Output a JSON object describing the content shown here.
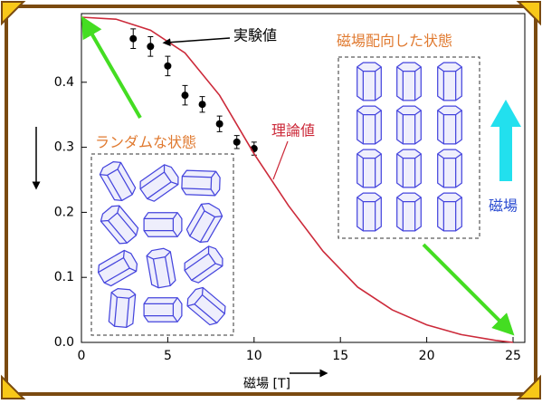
{
  "chart_data": {
    "type": "scatter",
    "xlabel": "磁場 [T]",
    "xlim": [
      0,
      25
    ],
    "ylim": [
      0,
      0.5
    ],
    "xticks": [
      0,
      5,
      10,
      15,
      20,
      25
    ],
    "yticks": [
      {
        "value": 0,
        "label": "0.0"
      },
      0.1,
      0.2,
      0.3,
      0.4
    ],
    "series": [
      {
        "name": "実験値",
        "color": "#000000",
        "style": "points",
        "x": [
          3,
          4,
          5,
          6,
          7,
          8,
          9,
          10
        ],
        "values": [
          0.467,
          0.455,
          0.425,
          0.38,
          0.366,
          0.336,
          0.308,
          0.298
        ],
        "errors": [
          0.015,
          0.015,
          0.015,
          0.015,
          0.012,
          0.012,
          0.01,
          0.01
        ]
      },
      {
        "name": "理論値",
        "color": "#cc2a3a",
        "style": "line",
        "x": [
          0,
          2,
          4,
          6,
          8,
          10,
          12,
          14,
          16,
          18,
          20,
          22,
          24,
          25
        ],
        "values": [
          0.5,
          0.497,
          0.48,
          0.445,
          0.38,
          0.29,
          0.21,
          0.14,
          0.085,
          0.05,
          0.027,
          0.012,
          0.003,
          0
        ]
      }
    ],
    "annotations": {
      "random": "ランダムな状態",
      "aligned": "磁場配向した状態",
      "field": "磁場"
    }
  }
}
